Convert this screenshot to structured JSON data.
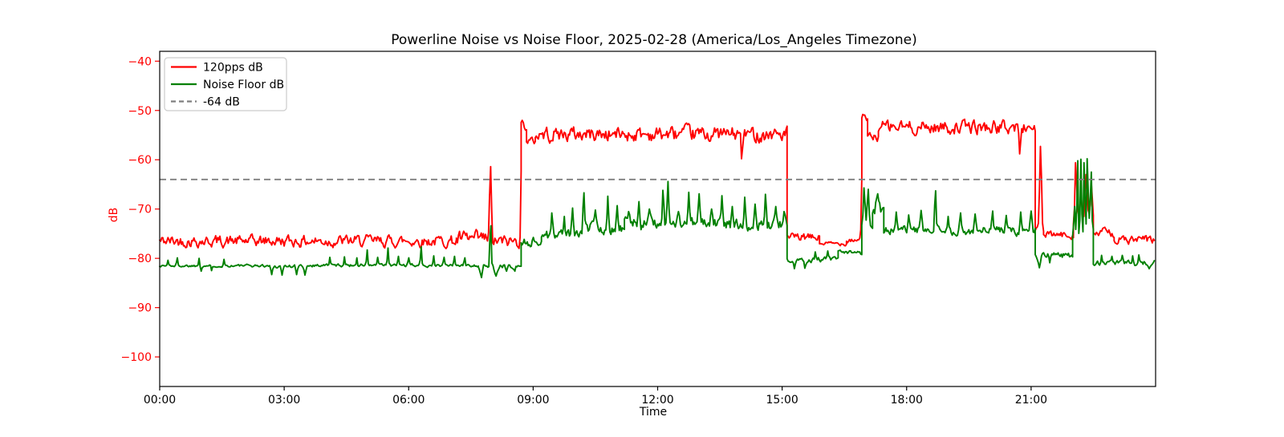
{
  "figure": {
    "background": "#ffffff"
  },
  "chart_data": {
    "type": "line",
    "title": "Powerline Noise vs Noise Floor, 2025-02-28 (America/Los_Angeles Timezone)",
    "xlabel": "Time",
    "ylabel": "dB",
    "xlim_hours": [
      0,
      24
    ],
    "ylim": [
      -106,
      -38
    ],
    "grid": false,
    "legend_position": "upper-left",
    "x_ticks": [
      {
        "h": 0,
        "label": "00:00"
      },
      {
        "h": 3,
        "label": "03:00"
      },
      {
        "h": 6,
        "label": "06:00"
      },
      {
        "h": 9,
        "label": "09:00"
      },
      {
        "h": 12,
        "label": "12:00"
      },
      {
        "h": 15,
        "label": "15:00"
      },
      {
        "h": 18,
        "label": "18:00"
      },
      {
        "h": 21,
        "label": "21:00"
      }
    ],
    "y_ticks": [
      {
        "v": -40,
        "label": "−40"
      },
      {
        "v": -50,
        "label": "−50"
      },
      {
        "v": -60,
        "label": "−60"
      },
      {
        "v": -70,
        "label": "−70"
      },
      {
        "v": -80,
        "label": "−80"
      },
      {
        "v": -90,
        "label": "−90"
      },
      {
        "v": -100,
        "label": "−100"
      }
    ],
    "axis_colors": {
      "y_ticks": "#ff0000",
      "x_ticks": "#000000",
      "spines": "#000000"
    },
    "threshold": {
      "label": "-64 dB",
      "value": -64,
      "color": "#7f7f7f",
      "style": "dashed"
    },
    "series": [
      {
        "name": "120pps dB",
        "color": "#ff0000",
        "sample_step_hours": 0.025,
        "segments": [
          [
            0,
            7.15,
            -76.5,
            1.3
          ],
          [
            7.15,
            7.95,
            -76.2,
            1.8
          ],
          [
            7.95,
            8.71,
            -76.6,
            1.4
          ],
          [
            8.71,
            8.84,
            -53.2,
            0.9
          ],
          [
            8.84,
            9.05,
            -56.3,
            0.9
          ],
          [
            9.05,
            15.12,
            -54.8,
            1.7
          ],
          [
            15.12,
            15.9,
            -75.8,
            0.9
          ],
          [
            15.9,
            16.55,
            -77.0,
            0.45
          ],
          [
            16.55,
            16.92,
            -76.2,
            0.7
          ],
          [
            16.92,
            17.06,
            -51.8,
            0.8
          ],
          [
            17.06,
            17.32,
            -55.4,
            1.0
          ],
          [
            17.32,
            21.1,
            -53.4,
            1.5
          ],
          [
            21.1,
            21.3,
            -74.2,
            1.8
          ],
          [
            21.3,
            22.02,
            -75.3,
            0.8
          ],
          [
            22.02,
            22.5,
            -71.5,
            2.2
          ],
          [
            22.5,
            23.0,
            -74.8,
            1.0
          ],
          [
            23.0,
            23.97,
            -76.3,
            1.0
          ]
        ],
        "spikes": [
          [
            7.97,
            -61.4,
            0.05
          ],
          [
            8.73,
            -52.0,
            0.05
          ],
          [
            14.03,
            -59.8,
            0.04
          ],
          [
            16.95,
            -50.8,
            0.06
          ],
          [
            20.73,
            -58.8,
            0.04
          ],
          [
            21.23,
            -57.3,
            0.05
          ],
          [
            22.08,
            -60.6,
            0.05
          ],
          [
            22.2,
            -66.5,
            0.04
          ],
          [
            22.32,
            -63.0,
            0.05
          ],
          [
            22.45,
            -64.5,
            0.04
          ]
        ]
      },
      {
        "name": "Noise Floor dB",
        "color": "#008000",
        "sample_step_hours": 0.025,
        "segments": [
          [
            0,
            2.6,
            -81.5,
            0.3
          ],
          [
            2.6,
            3.6,
            -81.6,
            0.4
          ],
          [
            3.6,
            7.68,
            -81.4,
            0.35
          ],
          [
            7.68,
            8.71,
            -81.6,
            0.5
          ],
          [
            8.71,
            9.2,
            -76.6,
            1.1
          ],
          [
            9.2,
            10.2,
            -75.2,
            1.3
          ],
          [
            10.2,
            11.2,
            -73.8,
            1.3
          ],
          [
            11.2,
            13.4,
            -72.8,
            1.3
          ],
          [
            13.4,
            15.12,
            -73.2,
            1.3
          ],
          [
            15.12,
            16.35,
            -80.2,
            0.6
          ],
          [
            16.35,
            16.92,
            -78.9,
            0.5
          ],
          [
            16.92,
            17.18,
            -73.0,
            1.5
          ],
          [
            17.18,
            17.45,
            -69.8,
            1.4
          ],
          [
            17.45,
            21.1,
            -74.4,
            1.0
          ],
          [
            21.1,
            22.0,
            -79.4,
            0.7
          ],
          [
            22.0,
            22.5,
            -73.5,
            2.4
          ],
          [
            22.5,
            23.97,
            -80.9,
            0.55
          ]
        ],
        "spikes": [
          [
            0.2,
            -80.4,
            0.03
          ],
          [
            0.42,
            -79.9,
            0.03
          ],
          [
            0.95,
            -80.0,
            0.03
          ],
          [
            1.0,
            -82.6,
            0.03
          ],
          [
            1.25,
            -82.5,
            0.03
          ],
          [
            1.55,
            -80.2,
            0.03
          ],
          [
            2.7,
            -83.3,
            0.04
          ],
          [
            2.95,
            -83.4,
            0.04
          ],
          [
            3.3,
            -83.3,
            0.04
          ],
          [
            3.5,
            -83.4,
            0.04
          ],
          [
            4.1,
            -79.8,
            0.03
          ],
          [
            4.45,
            -79.7,
            0.03
          ],
          [
            4.75,
            -79.9,
            0.03
          ],
          [
            5.0,
            -78.3,
            0.03
          ],
          [
            5.25,
            -79.8,
            0.03
          ],
          [
            5.5,
            -77.9,
            0.03
          ],
          [
            5.75,
            -79.6,
            0.03
          ],
          [
            6.0,
            -79.9,
            0.03
          ],
          [
            6.3,
            -77.7,
            0.03
          ],
          [
            6.6,
            -79.5,
            0.03
          ],
          [
            6.85,
            -79.8,
            0.03
          ],
          [
            7.1,
            -79.6,
            0.03
          ],
          [
            7.35,
            -79.9,
            0.03
          ],
          [
            7.75,
            -83.9,
            0.06
          ],
          [
            7.97,
            -73.4,
            0.04
          ],
          [
            8.1,
            -83.6,
            0.07
          ],
          [
            8.35,
            -82.6,
            0.04
          ],
          [
            8.55,
            -82.6,
            0.04
          ],
          [
            9.45,
            -70.8,
            0.04
          ],
          [
            9.75,
            -71.5,
            0.04
          ],
          [
            9.95,
            -69.8,
            0.04
          ],
          [
            10.22,
            -66.7,
            0.04
          ],
          [
            10.5,
            -70.2,
            0.04
          ],
          [
            10.8,
            -67.4,
            0.04
          ],
          [
            11.02,
            -69.3,
            0.04
          ],
          [
            11.3,
            -70.5,
            0.04
          ],
          [
            11.55,
            -68.5,
            0.04
          ],
          [
            11.8,
            -70.0,
            0.04
          ],
          [
            12.13,
            -66.2,
            0.04
          ],
          [
            12.25,
            -64.4,
            0.04
          ],
          [
            12.5,
            -70.5,
            0.04
          ],
          [
            12.75,
            -66.6,
            0.04
          ],
          [
            13.0,
            -66.9,
            0.04
          ],
          [
            13.3,
            -70.0,
            0.04
          ],
          [
            13.55,
            -67.3,
            0.04
          ],
          [
            13.8,
            -69.5,
            0.04
          ],
          [
            14.1,
            -67.6,
            0.04
          ],
          [
            14.35,
            -69.0,
            0.04
          ],
          [
            14.6,
            -67.0,
            0.04
          ],
          [
            14.85,
            -69.5,
            0.04
          ],
          [
            15.05,
            -70.5,
            0.04
          ],
          [
            15.3,
            -82.1,
            0.04
          ],
          [
            15.55,
            -82.0,
            0.04
          ],
          [
            15.8,
            -78.7,
            0.03
          ],
          [
            16.1,
            -78.5,
            0.03
          ],
          [
            16.98,
            -65.7,
            0.05
          ],
          [
            17.07,
            -66.0,
            0.04
          ],
          [
            17.3,
            -66.9,
            0.07
          ],
          [
            17.75,
            -70.6,
            0.04
          ],
          [
            18.05,
            -71.2,
            0.04
          ],
          [
            18.35,
            -70.3,
            0.04
          ],
          [
            18.69,
            -66.3,
            0.04
          ],
          [
            19.0,
            -71.5,
            0.04
          ],
          [
            19.3,
            -70.8,
            0.04
          ],
          [
            19.65,
            -71.0,
            0.04
          ],
          [
            20.07,
            -70.4,
            0.04
          ],
          [
            20.4,
            -71.3,
            0.04
          ],
          [
            20.75,
            -70.6,
            0.04
          ],
          [
            21.0,
            -70.4,
            0.05
          ],
          [
            21.2,
            -81.9,
            0.06
          ],
          [
            21.45,
            -80.9,
            0.04
          ],
          [
            22.05,
            -69.5,
            0.03
          ],
          [
            22.12,
            -60.2,
            0.03
          ],
          [
            22.2,
            -59.9,
            0.03
          ],
          [
            22.28,
            -60.6,
            0.03
          ],
          [
            22.36,
            -59.8,
            0.03
          ],
          [
            22.44,
            -62.5,
            0.03
          ],
          [
            22.7,
            -79.4,
            0.03
          ],
          [
            22.95,
            -79.6,
            0.03
          ],
          [
            23.2,
            -79.4,
            0.03
          ],
          [
            23.45,
            -79.5,
            0.03
          ],
          [
            23.6,
            -79.3,
            0.03
          ],
          [
            23.85,
            -82.1,
            0.04
          ]
        ]
      }
    ],
    "legend": {
      "items": [
        {
          "label": "120pps dB",
          "color": "#ff0000",
          "dashed": false
        },
        {
          "label": "Noise Floor dB",
          "color": "#008000",
          "dashed": false
        },
        {
          "label": "-64 dB",
          "color": "#7f7f7f",
          "dashed": true
        }
      ]
    }
  }
}
